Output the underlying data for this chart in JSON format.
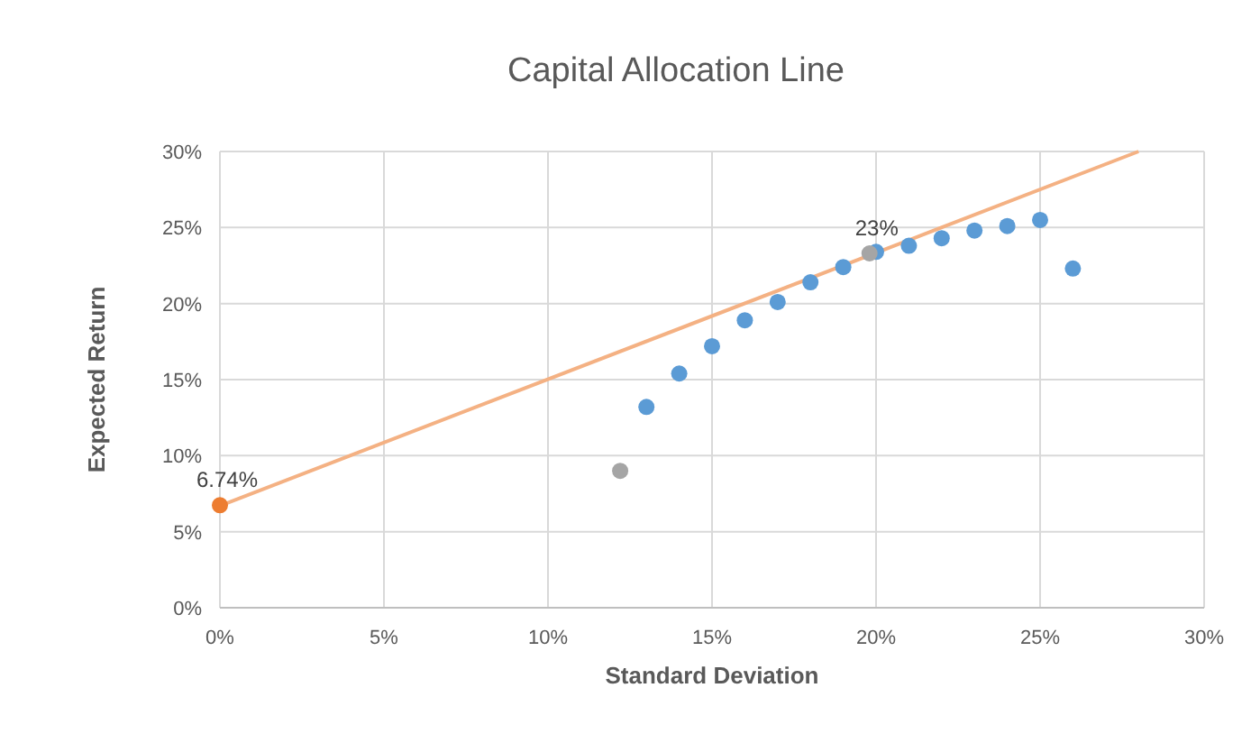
{
  "chart_data": {
    "type": "scatter",
    "title": "Capital Allocation Line",
    "xlabel": "Standard Deviation",
    "ylabel": "Expected Return",
    "xlim": [
      0,
      30
    ],
    "ylim": [
      0,
      30
    ],
    "xticks": [
      {
        "value": 0,
        "label": "0%"
      },
      {
        "value": 5,
        "label": "5%"
      },
      {
        "value": 10,
        "label": "10%"
      },
      {
        "value": 15,
        "label": "15%"
      },
      {
        "value": 20,
        "label": "20%"
      },
      {
        "value": 25,
        "label": "25%"
      },
      {
        "value": 30,
        "label": "30%"
      }
    ],
    "yticks": [
      {
        "value": 0,
        "label": "0%"
      },
      {
        "value": 5,
        "label": "5%"
      },
      {
        "value": 10,
        "label": "10%"
      },
      {
        "value": 15,
        "label": "15%"
      },
      {
        "value": 20,
        "label": "20%"
      },
      {
        "value": 25,
        "label": "25%"
      },
      {
        "value": 30,
        "label": "30%"
      }
    ],
    "grid": true,
    "marker": "circle",
    "series": [
      {
        "type": "line",
        "color": "#f4b183",
        "x": [
          0,
          28
        ],
        "values": [
          6.7,
          30
        ],
        "marker": "none"
      },
      {
        "color": "#5b9bd5",
        "x": [
          13,
          14,
          15,
          16,
          17,
          18,
          19,
          20,
          21,
          22,
          23,
          24,
          25,
          26
        ],
        "values": [
          13.2,
          15.4,
          17.2,
          18.9,
          20.1,
          21.4,
          22.4,
          23.4,
          23.8,
          24.3,
          24.8,
          25.1,
          25.5,
          22.3
        ]
      },
      {
        "color": "#a5a5a5",
        "x": [
          12.2,
          19.8
        ],
        "values": [
          9.0,
          23.3
        ],
        "value_labels": [
          null,
          "23%"
        ]
      },
      {
        "color": "#ed7d31",
        "x": [
          0
        ],
        "values": [
          6.74
        ],
        "value_labels": [
          "6.74%"
        ]
      }
    ]
  }
}
